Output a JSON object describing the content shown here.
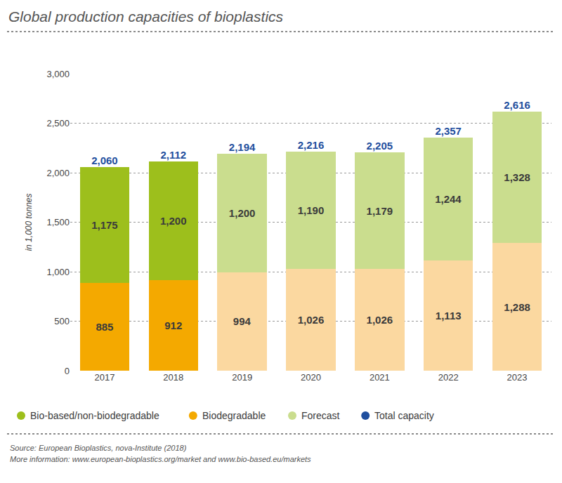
{
  "chart_data": {
    "type": "bar",
    "title": "Global production capacities of bioplastics",
    "y_label": "in 1,000 tonnes",
    "source": "Source: European Bioplastics, nova-Institute (2018)",
    "note": "More information: www.european-bioplastics.org/market and www.bio-based.eu/markets",
    "categories": [
      "2017",
      "2018",
      "2019",
      "2020",
      "2021",
      "2022",
      "2023"
    ],
    "series": [
      {
        "name": "Biodegradable",
        "type": "bar",
        "color": "#f4a900",
        "colors": [
          "#f4a900",
          "#f4a900",
          "#fbd8a0",
          "#fbd8a0",
          "#fbd8a0",
          "#fbd8a0",
          "#fbd8a0"
        ],
        "values": [
          885,
          912,
          994,
          1026,
          1026,
          1113,
          1288
        ],
        "value_labels": [
          "885",
          "912",
          "994",
          "1,026",
          "1,026",
          "1,113",
          "1,288"
        ]
      },
      {
        "name": "Bio-based/non-biodegradable",
        "type": "bar",
        "color": "#9dbf1c",
        "colors": [
          "#9dbf1c",
          "#9dbf1c",
          "#cadd8e",
          "#cadd8e",
          "#cadd8e",
          "#cadd8e",
          "#cadd8e"
        ],
        "values": [
          1175,
          1200,
          1200,
          1190,
          1179,
          1244,
          1328
        ],
        "value_labels": [
          "1,175",
          "1,200",
          "1,200",
          "1,190",
          "1,179",
          "1,244",
          "1,328"
        ]
      },
      {
        "name": "Total capacity",
        "type": "text",
        "color": "#1f4f9e",
        "values": [
          2060,
          2112,
          2194,
          2216,
          2205,
          2357,
          2616
        ],
        "value_labels": [
          "2,060",
          "2,112",
          "2,194",
          "2,216",
          "2,205",
          "2,357",
          "2,616"
        ]
      }
    ],
    "forecast": {
      "name": "Forecast",
      "color": "#cadd8e"
    },
    "ylim": [
      0,
      3000
    ],
    "yticks": [
      0,
      500,
      {
        "value": 1000,
        "label": "1,000"
      },
      {
        "value": 1500,
        "label": "1,500"
      },
      {
        "value": 2000,
        "label": "2,000"
      },
      {
        "value": 2500,
        "label": "2,500"
      },
      {
        "value": 3000,
        "label": "3,000"
      }
    ],
    "stacked": true,
    "grid": true,
    "data_labels": true,
    "legend": "bottom"
  }
}
